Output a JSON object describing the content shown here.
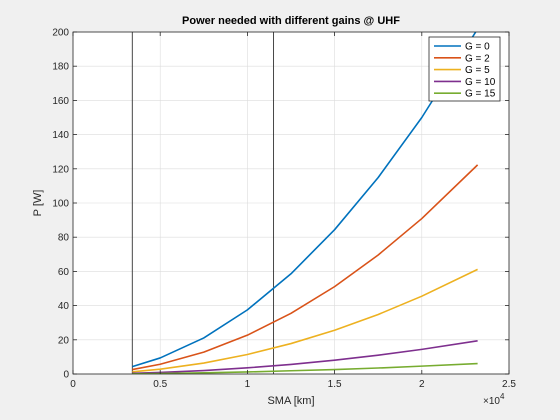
{
  "chart_data": {
    "type": "line",
    "title": "Power needed with different gains @ UHF",
    "xlabel": "SMA [km]",
    "ylabel": "P [W]",
    "x_exponent_label": "×10",
    "x_exponent_power": "4",
    "xlim": [
      0,
      25000
    ],
    "ylim": [
      0,
      200
    ],
    "x_ticks": [
      0,
      5000,
      10000,
      15000,
      20000,
      25000
    ],
    "x_tick_labels": [
      "0",
      "0.5",
      "1",
      "1.5",
      "2",
      "2.5"
    ],
    "y_ticks": [
      0,
      20,
      40,
      60,
      80,
      100,
      120,
      140,
      160,
      180,
      200
    ],
    "y_tick_labels": [
      "0",
      "20",
      "40",
      "60",
      "80",
      "100",
      "120",
      "140",
      "160",
      "180",
      "200"
    ],
    "grid": true,
    "legend_position": "top-right",
    "vertical_lines_x": [
      3400,
      11500
    ],
    "x": [
      3400,
      5000,
      7500,
      10000,
      12500,
      15000,
      17500,
      20000,
      23200
    ],
    "series": [
      {
        "name": "G = 0",
        "color": "#0072BD",
        "values": [
          4.3,
          9.4,
          21.1,
          37.5,
          58.6,
          84.4,
          114.9,
          150.0,
          201.8
        ]
      },
      {
        "name": "G = 2",
        "color": "#D95319",
        "values": [
          2.6,
          5.7,
          12.8,
          22.7,
          35.5,
          51.1,
          69.6,
          90.9,
          122.3
        ]
      },
      {
        "name": "G = 5",
        "color": "#EDB120",
        "values": [
          1.3,
          2.8,
          6.4,
          11.4,
          17.8,
          25.6,
          34.8,
          45.5,
          61.2
        ]
      },
      {
        "name": "G = 10",
        "color": "#7E2F8E",
        "values": [
          0.4,
          0.9,
          2.0,
          3.6,
          5.6,
          8.1,
          11.0,
          14.4,
          19.4
        ]
      },
      {
        "name": "G = 15",
        "color": "#77AC30",
        "values": [
          0.1,
          0.3,
          0.7,
          1.2,
          1.9,
          2.6,
          3.5,
          4.6,
          6.1
        ]
      }
    ]
  }
}
